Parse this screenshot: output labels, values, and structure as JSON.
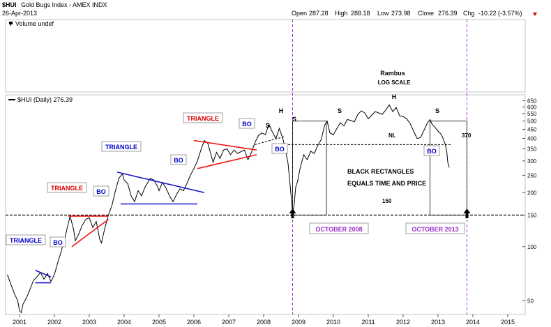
{
  "header": {
    "symbol": "$HUI",
    "name": "Gold Bugs Index - AMEX INDX",
    "date": "26-Apr-2013",
    "open_label": "Open",
    "open": "287.28",
    "high_label": "High",
    "high": "288.18",
    "low_label": "Low",
    "low": "273.98",
    "close_label": "Close",
    "close": "276.39",
    "chg_label": "Chg",
    "chg": "-10.22 (-3.57%)",
    "volume_label": "Volume undef",
    "series_label": "$HUI (Daily) 276.39"
  },
  "colors": {
    "price": "#000000",
    "triangle_blue": "#1818cc",
    "triangle_red": "#ee1111",
    "label_blue": "#0000cc",
    "label_red": "#dd0000",
    "purple": "#9b30c8",
    "down_arrow": "#dd0000"
  },
  "chart_data": {
    "type": "line",
    "title": "Rambus",
    "subtitle": "LOG SCALE",
    "y_scale": "log",
    "ylim": [
      42,
      700
    ],
    "xlim": [
      2000.6,
      2015.5
    ],
    "y_ticks": [
      "650",
      "600",
      "550",
      "500",
      "450",
      "400",
      "350",
      "300",
      "250",
      "200",
      "150",
      "100",
      "50"
    ],
    "y_tick_values": [
      650,
      600,
      550,
      500,
      450,
      400,
      350,
      300,
      250,
      200,
      150,
      100,
      50
    ],
    "x_ticks": [
      "2001",
      "2002",
      "2003",
      "2004",
      "2005",
      "2006",
      "2007",
      "2008",
      "2009",
      "2010",
      "2011",
      "2012",
      "2013",
      "2014",
      "2015"
    ],
    "x_tick_values": [
      2001,
      2002,
      2003,
      2004,
      2005,
      2006,
      2007,
      2008,
      2009,
      2010,
      2011,
      2012,
      2013,
      2014,
      2015
    ],
    "grid": false,
    "series": [
      {
        "name": "$HUI",
        "points": [
          [
            2000.65,
            70
          ],
          [
            2000.75,
            62
          ],
          [
            2000.85,
            55
          ],
          [
            2000.95,
            50
          ],
          [
            2001.0,
            44
          ],
          [
            2001.05,
            43
          ],
          [
            2001.1,
            48
          ],
          [
            2001.2,
            52
          ],
          [
            2001.3,
            58
          ],
          [
            2001.4,
            65
          ],
          [
            2001.5,
            68
          ],
          [
            2001.6,
            72
          ],
          [
            2001.7,
            66
          ],
          [
            2001.8,
            71
          ],
          [
            2001.9,
            64
          ],
          [
            2002.0,
            70
          ],
          [
            2002.1,
            82
          ],
          [
            2002.2,
            95
          ],
          [
            2002.3,
            112
          ],
          [
            2002.4,
            135
          ],
          [
            2002.45,
            148
          ],
          [
            2002.55,
            125
          ],
          [
            2002.6,
            108
          ],
          [
            2002.7,
            118
          ],
          [
            2002.8,
            132
          ],
          [
            2002.9,
            142
          ],
          [
            2003.0,
            145
          ],
          [
            2003.1,
            128
          ],
          [
            2003.2,
            138
          ],
          [
            2003.3,
            110
          ],
          [
            2003.35,
            105
          ],
          [
            2003.45,
            128
          ],
          [
            2003.55,
            150
          ],
          [
            2003.65,
            170
          ],
          [
            2003.75,
            205
          ],
          [
            2003.85,
            240
          ],
          [
            2003.95,
            255
          ],
          [
            2004.0,
            235
          ],
          [
            2004.1,
            225
          ],
          [
            2004.2,
            192
          ],
          [
            2004.3,
            178
          ],
          [
            2004.4,
            205
          ],
          [
            2004.5,
            192
          ],
          [
            2004.6,
            215
          ],
          [
            2004.75,
            240
          ],
          [
            2004.85,
            235
          ],
          [
            2004.95,
            218
          ],
          [
            2005.0,
            205
          ],
          [
            2005.1,
            228
          ],
          [
            2005.2,
            212
          ],
          [
            2005.3,
            192
          ],
          [
            2005.4,
            178
          ],
          [
            2005.5,
            195
          ],
          [
            2005.6,
            210
          ],
          [
            2005.7,
            205
          ],
          [
            2005.8,
            225
          ],
          [
            2005.9,
            250
          ],
          [
            2006.0,
            272
          ],
          [
            2006.1,
            300
          ],
          [
            2006.2,
            345
          ],
          [
            2006.3,
            390
          ],
          [
            2006.4,
            375
          ],
          [
            2006.5,
            320
          ],
          [
            2006.55,
            295
          ],
          [
            2006.65,
            335
          ],
          [
            2006.75,
            310
          ],
          [
            2006.85,
            345
          ],
          [
            2006.95,
            350
          ],
          [
            2007.05,
            325
          ],
          [
            2007.15,
            345
          ],
          [
            2007.25,
            330
          ],
          [
            2007.35,
            338
          ],
          [
            2007.45,
            345
          ],
          [
            2007.55,
            305
          ],
          [
            2007.65,
            335
          ],
          [
            2007.75,
            380
          ],
          [
            2007.85,
            415
          ],
          [
            2007.95,
            430
          ],
          [
            2008.05,
            420
          ],
          [
            2008.15,
            480
          ],
          [
            2008.25,
            435
          ],
          [
            2008.35,
            400
          ],
          [
            2008.45,
            455
          ],
          [
            2008.55,
            400
          ],
          [
            2008.62,
            350
          ],
          [
            2008.7,
            290
          ],
          [
            2008.75,
            230
          ],
          [
            2008.8,
            180
          ],
          [
            2008.83,
            155
          ],
          [
            2008.87,
            168
          ],
          [
            2008.92,
            215
          ],
          [
            2008.97,
            230
          ],
          [
            2009.05,
            275
          ],
          [
            2009.15,
            325
          ],
          [
            2009.25,
            305
          ],
          [
            2009.35,
            340
          ],
          [
            2009.45,
            330
          ],
          [
            2009.55,
            365
          ],
          [
            2009.65,
            395
          ],
          [
            2009.75,
            475
          ],
          [
            2009.82,
            500
          ],
          [
            2009.9,
            430
          ],
          [
            2010.0,
            420
          ],
          [
            2010.1,
            455
          ],
          [
            2010.2,
            490
          ],
          [
            2010.3,
            470
          ],
          [
            2010.4,
            510
          ],
          [
            2010.5,
            505
          ],
          [
            2010.6,
            495
          ],
          [
            2010.7,
            545
          ],
          [
            2010.8,
            570
          ],
          [
            2010.9,
            555
          ],
          [
            2011.0,
            515
          ],
          [
            2011.1,
            540
          ],
          [
            2011.2,
            565
          ],
          [
            2011.3,
            555
          ],
          [
            2011.4,
            545
          ],
          [
            2011.5,
            575
          ],
          [
            2011.6,
            615
          ],
          [
            2011.7,
            565
          ],
          [
            2011.8,
            595
          ],
          [
            2011.9,
            535
          ],
          [
            2012.0,
            530
          ],
          [
            2012.1,
            515
          ],
          [
            2012.2,
            485
          ],
          [
            2012.3,
            440
          ],
          [
            2012.4,
            400
          ],
          [
            2012.5,
            405
          ],
          [
            2012.6,
            445
          ],
          [
            2012.7,
            490
          ],
          [
            2012.77,
            510
          ],
          [
            2012.83,
            480
          ],
          [
            2012.9,
            465
          ],
          [
            2013.0,
            440
          ],
          [
            2013.1,
            420
          ],
          [
            2013.2,
            375
          ],
          [
            2013.25,
            340
          ],
          [
            2013.28,
            295
          ],
          [
            2013.32,
            276
          ]
        ]
      }
    ],
    "annotations": {
      "triangles": [
        "TRIANGLE",
        "TRIANGLE",
        "TRIANGLE",
        "TRIANGLE"
      ],
      "breakout": "BO",
      "hs_s": "S",
      "hs_h": "H",
      "neckline": "NL",
      "neckline_value": "370",
      "support_value": "150",
      "rectangles_note_1": "BLACK RECTANGLES",
      "rectangles_note_2": "EQUALS TIME AND PRICE",
      "event_1": "OCTOBER 2008",
      "event_2": "OCTOBER 2013"
    }
  }
}
